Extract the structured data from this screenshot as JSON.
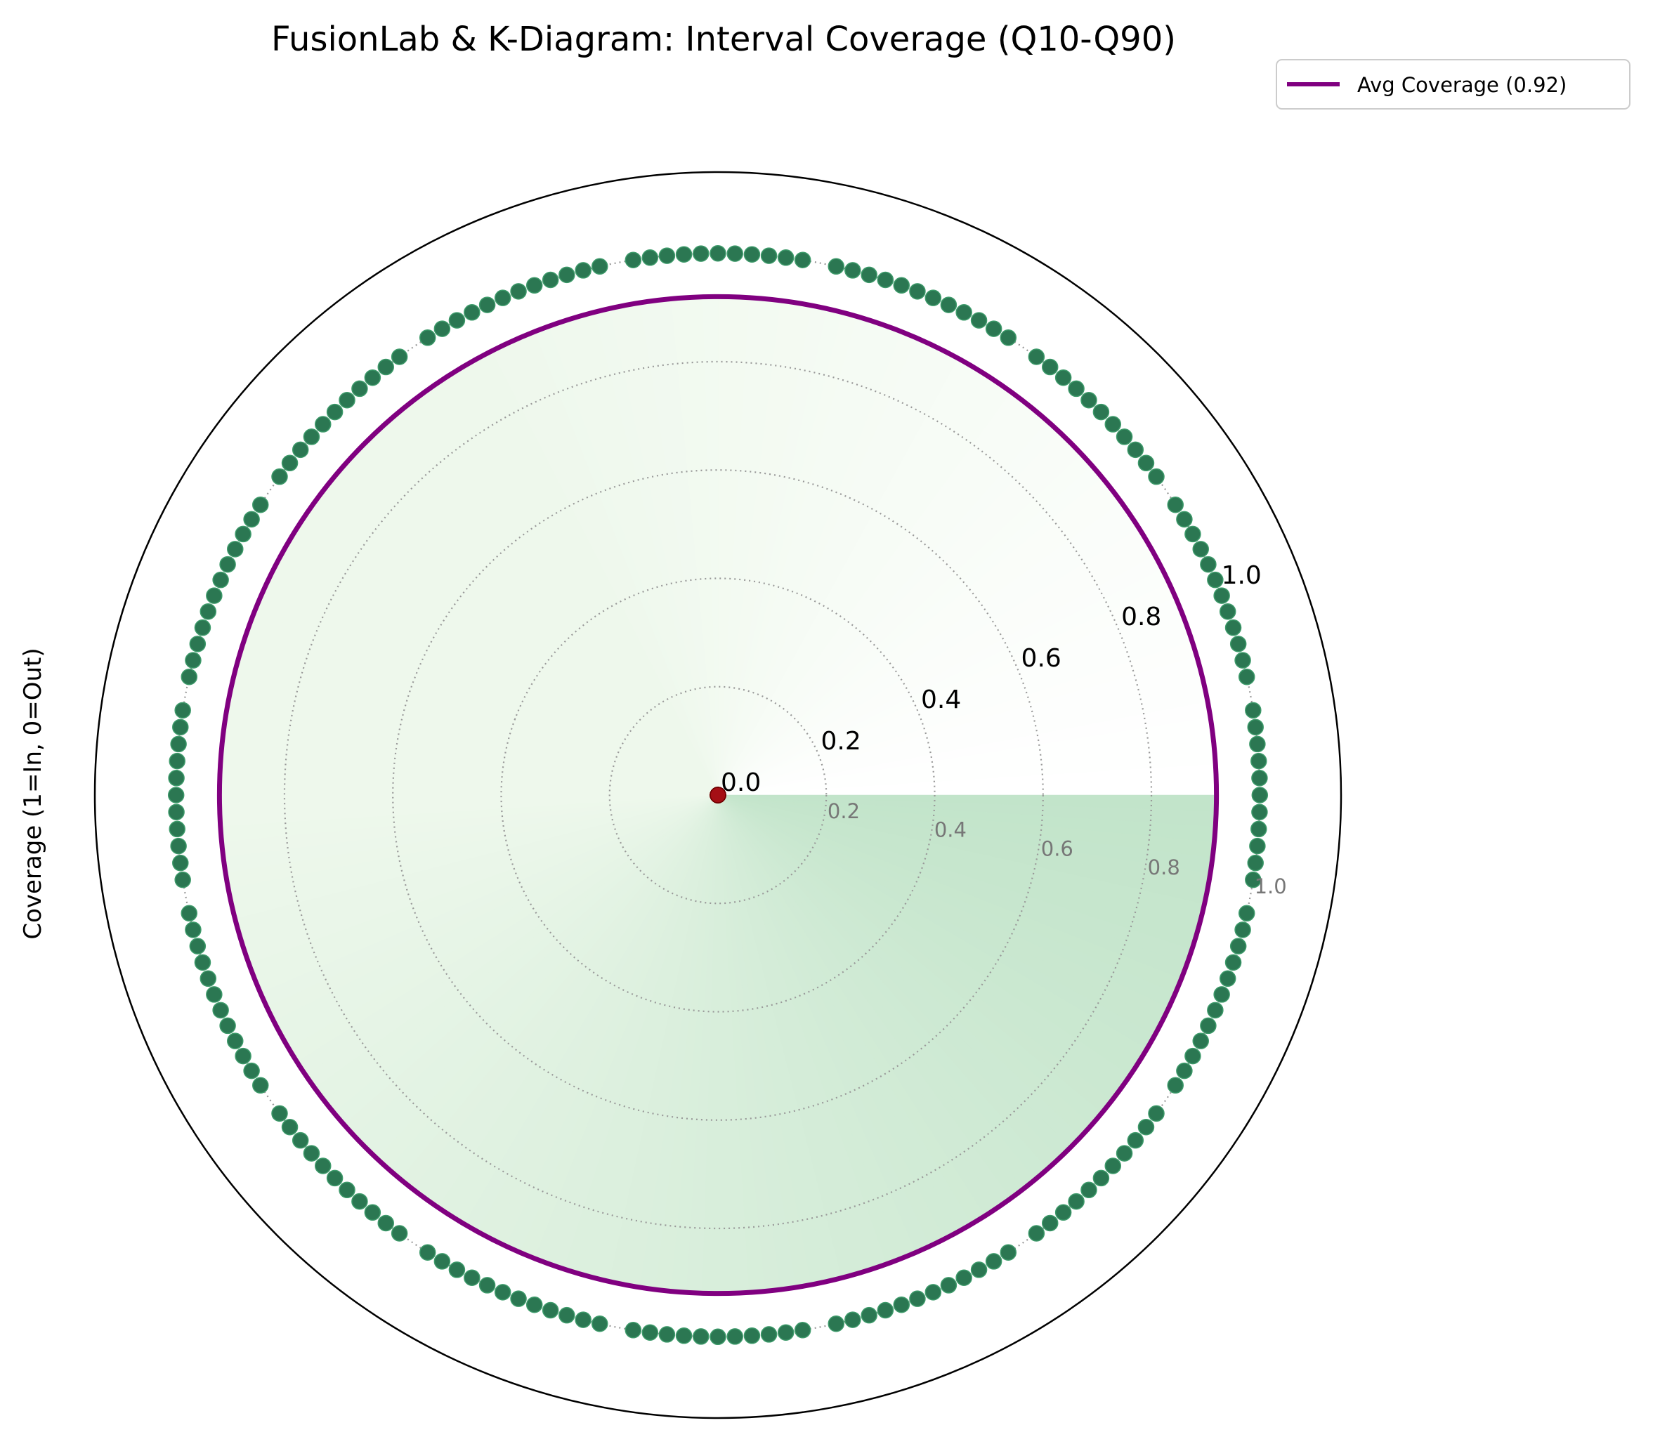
{
  "chart_data": {
    "type": "polar-scatter",
    "title": "FusionLab & K-Diagram: Interval Coverage (Q10-Q90)",
    "ylabel": "Coverage (1=In, 0=Out)",
    "r_ticks": [
      "0.0",
      "0.2",
      "0.4",
      "0.6",
      "0.8",
      "1.0"
    ],
    "r_ticks_secondary": [
      "0.2",
      "0.4",
      "0.6",
      "0.8",
      "1.0"
    ],
    "rlim": [
      0,
      1.15
    ],
    "grid": "dotted",
    "legend": {
      "placement": "top-right",
      "label": "Avg Coverage (0.92)"
    },
    "avg_coverage": 0.92,
    "n_samples": 200,
    "n_covered": 184,
    "n_uncovered": 16,
    "point_value_covered": 1,
    "point_value_uncovered": 0,
    "colors": {
      "covered_point": "#2b7752",
      "uncovered_point": "#a50f15",
      "avg_line": "#800080",
      "fill_light": "#eef8ec",
      "fill_dark": "#c2e4ca",
      "grid": "#999999"
    }
  }
}
